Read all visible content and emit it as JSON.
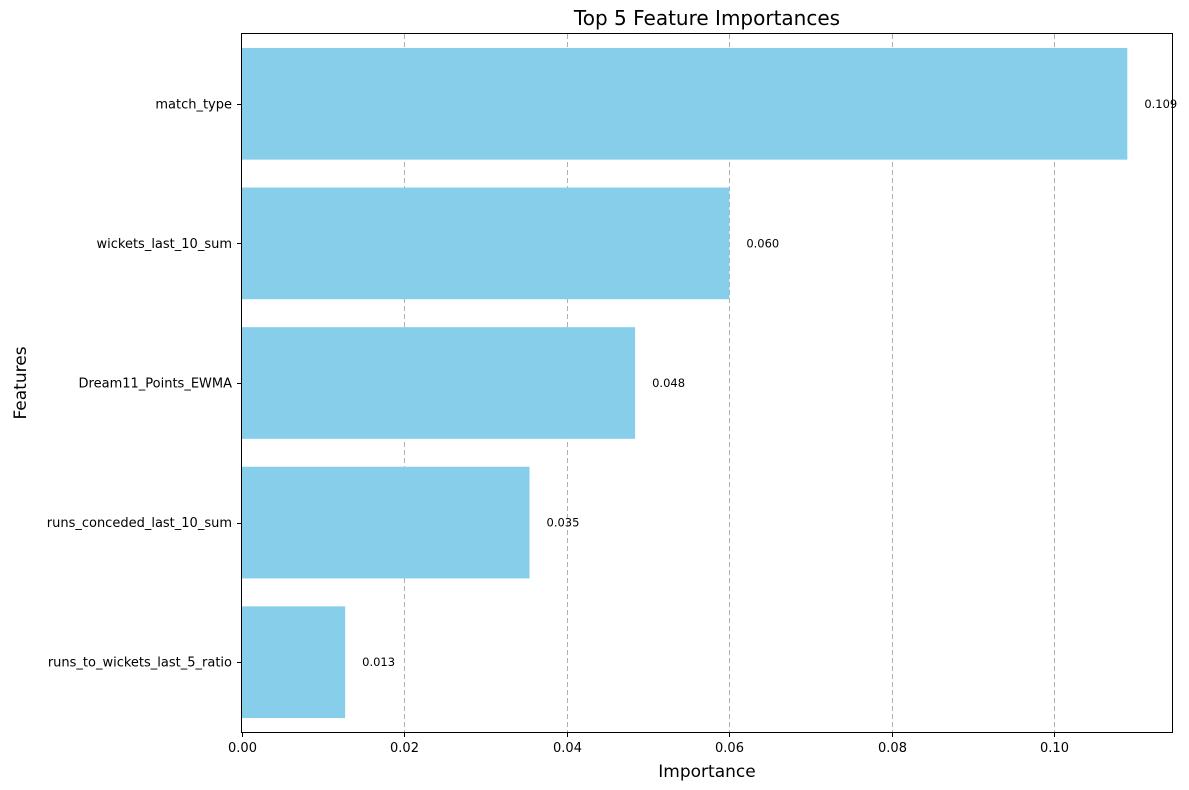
{
  "chart_data": {
    "type": "bar",
    "orientation": "horizontal",
    "title": "Top 5 Feature Importances",
    "xlabel": "Importance",
    "ylabel": "Features",
    "categories": [
      "runs_to_wickets_last_5_ratio",
      "runs_conceded_last_10_sum",
      "Dream11_Points_EWMA",
      "wickets_last_10_sum",
      "match_type"
    ],
    "values": [
      0.0127,
      0.0354,
      0.0484,
      0.06,
      0.109
    ],
    "value_labels": [
      "0.013",
      "0.035",
      "0.048",
      "0.060",
      "0.109"
    ],
    "xlim": [
      0,
      0.1145
    ],
    "xticks": [
      0.0,
      0.02,
      0.04,
      0.06,
      0.08,
      0.1
    ],
    "xtick_labels": [
      "0.00",
      "0.02",
      "0.04",
      "0.06",
      "0.08",
      "0.10"
    ],
    "grid": "x-axis dashed",
    "bar_color": "#87CEEB"
  }
}
